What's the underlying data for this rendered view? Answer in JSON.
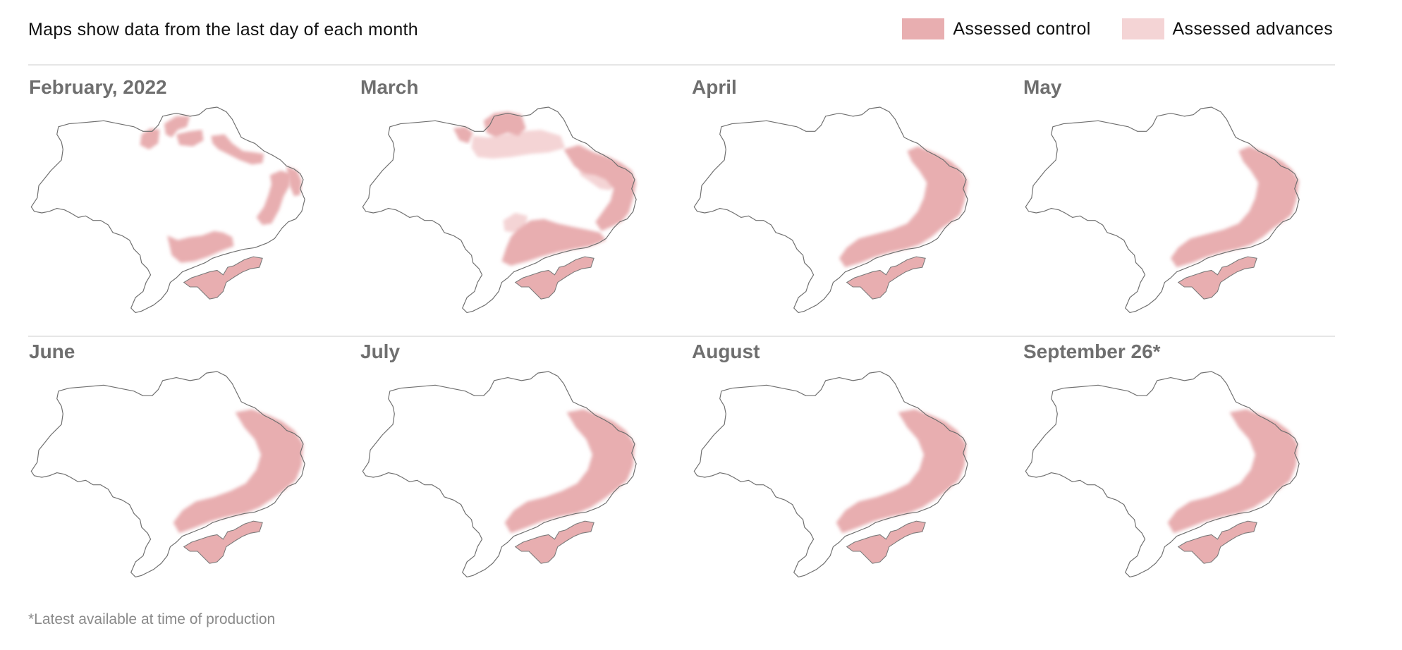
{
  "header": {
    "subtitle": "Maps show data from the last day of each month"
  },
  "legend": {
    "items": [
      {
        "label": "Assessed control",
        "color": "#e8aeb0"
      },
      {
        "label": "Assessed advances",
        "color": "#f4d4d5"
      }
    ]
  },
  "maps": [
    {
      "title": "February, 2022",
      "stage": 0
    },
    {
      "title": "March",
      "stage": 1
    },
    {
      "title": "April",
      "stage": 2
    },
    {
      "title": "May",
      "stage": 3
    },
    {
      "title": "June",
      "stage": 4
    },
    {
      "title": "July",
      "stage": 5
    },
    {
      "title": "August",
      "stage": 6
    },
    {
      "title": "September 26*",
      "stage": 7
    }
  ],
  "footnote": "*Latest available at time of production"
}
